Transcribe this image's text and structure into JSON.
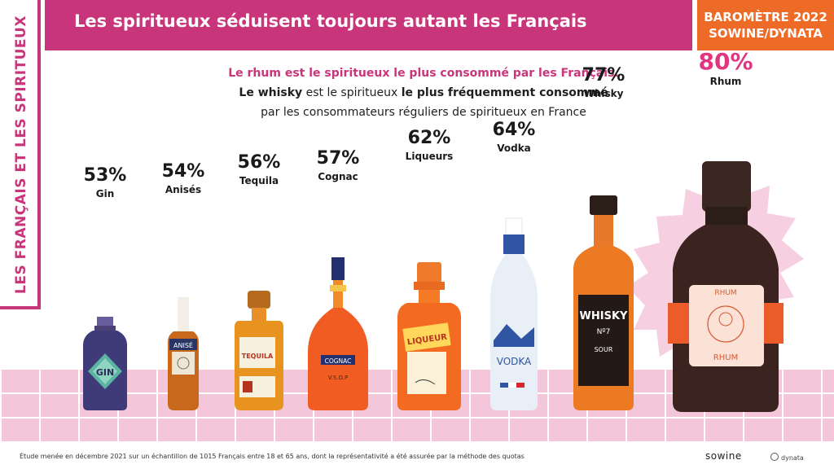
{
  "header": {
    "title": "Les spiritueux séduisent toujours autant les Français"
  },
  "badge": {
    "line1": "BAROMÈTRE 2022",
    "line2": "SOWINE/DYNATA"
  },
  "side_title": "LES FRANÇAIS ET LES SPIRITUEUX",
  "intro": {
    "line1": "Le rhum est le spiritueux le plus consommé par les Français.",
    "line2_a": "Le whisky",
    "line2_b": " est le spiritueux ",
    "line2_c": "le plus fréquemment consommé",
    "line3": "par les consommateurs réguliers de spiritueux en France"
  },
  "bottle_labels": {
    "gin": "GIN",
    "anise": "ANISÉ",
    "tequila": "TEQUILA",
    "cognac": "COGNAC",
    "cognac_sub": "V.S.O.P",
    "liqueur": "LIQUEUR",
    "vodka": "VODKA",
    "whisky": "WHISKY",
    "whisky_no": "Nº7",
    "whisky_sub": "SOUR",
    "rhum_top": "RHUM",
    "rhum_bottom": "RHUM"
  },
  "footer": {
    "note": "Étude menée en décembre 2021 sur un échantillon de 1015 Français entre 18 et 65 ans, dont la représentativité a été assurée par la méthode des quotas",
    "logo1": "sowine",
    "logo2": "dynata"
  },
  "colors": {
    "accent": "#c9357a",
    "badge": "#ee6b27",
    "highlight": "#e0357f"
  },
  "chart_data": {
    "type": "bar",
    "categories": [
      "Gin",
      "Anisés",
      "Tequila",
      "Cognac",
      "Liqueurs",
      "Vodka",
      "Whisky",
      "Rhum"
    ],
    "values": [
      53,
      54,
      56,
      57,
      62,
      64,
      77,
      80
    ],
    "value_labels": [
      "53%",
      "54%",
      "56%",
      "57%",
      "62%",
      "64%",
      "77%",
      "80%"
    ],
    "unit": "%",
    "highlight": "Rhum"
  }
}
